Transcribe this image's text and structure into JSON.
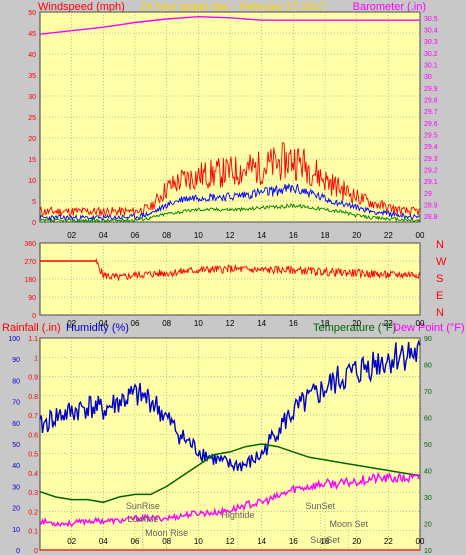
{
  "header": {
    "left_label": "Windspeed (mph)",
    "center_label": "24 hour graph day - February 27 2017",
    "right_label": "Barometer (.in)"
  },
  "colors": {
    "background": "#c8c8c8",
    "plot_background": "#ffffa8",
    "gust": "#ff0000",
    "average_speed": "#0000ff",
    "lull": "#008000",
    "barometer": "#ff00ff",
    "direction": "#ff0000",
    "humidity": "#0000cc",
    "temperature": "#006400",
    "dew_point": "#ff00ff",
    "rainfall": "#ff0000",
    "grid": "#808080"
  },
  "chart_data": [
    {
      "type": "line",
      "panel": "wind",
      "x_ticks": [
        "02",
        "04",
        "06",
        "08",
        "10",
        "12",
        "14",
        "16",
        "18",
        "20",
        "22",
        "00"
      ],
      "y_left": {
        "label": "Windspeed (mph)",
        "ylim": [
          0,
          50
        ],
        "ticks": [
          "0",
          "5",
          "10",
          "15",
          "20",
          "25",
          "30",
          "35",
          "40",
          "45",
          "50"
        ]
      },
      "y_right": {
        "label": "Barometer (.in)",
        "ylim": [
          28.75,
          30.55
        ],
        "ticks": [
          "28.8",
          "28.9",
          "29",
          "29.1",
          "29.2",
          "29.3",
          "29.4",
          "29.5",
          "29.6",
          "29.7",
          "29.8",
          "29.9",
          "30",
          "30.1",
          "30.2",
          "30.3",
          "30.4",
          "30.5"
        ]
      },
      "grid": true,
      "series": [
        {
          "axis": "right",
          "points": [
            [
              0,
              30.36
            ],
            [
              2,
              30.39
            ],
            [
              4,
              30.42
            ],
            [
              6,
              30.46
            ],
            [
              8,
              30.49
            ],
            [
              10,
              30.51
            ],
            [
              12,
              30.5
            ],
            [
              14,
              30.48
            ],
            [
              16,
              30.48
            ],
            [
              18,
              30.48
            ],
            [
              20,
              30.48
            ],
            [
              22,
              30.48
            ],
            [
              24,
              30.48
            ]
          ]
        },
        {
          "axis": "left",
          "points": [
            [
              0,
              2.5
            ],
            [
              4,
              2.5
            ],
            [
              6,
              2.5
            ],
            [
              7,
              3.5
            ],
            [
              8,
              8
            ],
            [
              9,
              10
            ],
            [
              10,
              11
            ],
            [
              11,
              11.5
            ],
            [
              12,
              12
            ],
            [
              13,
              12.5
            ],
            [
              14,
              13
            ],
            [
              15,
              14
            ],
            [
              16,
              15
            ],
            [
              17,
              13
            ],
            [
              18,
              10
            ],
            [
              19,
              8
            ],
            [
              20,
              6
            ],
            [
              21,
              4.5
            ],
            [
              22,
              3.5
            ],
            [
              23,
              2.5
            ],
            [
              24,
              2.5
            ]
          ]
        },
        {
          "axis": "left",
          "points": [
            [
              0,
              1
            ],
            [
              4,
              1
            ],
            [
              6,
              1.2
            ],
            [
              7,
              2
            ],
            [
              8,
              4
            ],
            [
              9,
              5.5
            ],
            [
              10,
              6
            ],
            [
              11,
              6
            ],
            [
              12,
              6
            ],
            [
              13,
              6.5
            ],
            [
              14,
              7
            ],
            [
              15,
              7.5
            ],
            [
              16,
              8
            ],
            [
              17,
              7
            ],
            [
              18,
              5.5
            ],
            [
              19,
              4.5
            ],
            [
              20,
              3.5
            ],
            [
              21,
              2.5
            ],
            [
              22,
              2
            ],
            [
              23,
              1.5
            ],
            [
              24,
              1
            ]
          ]
        },
        {
          "axis": "left",
          "points": [
            [
              0,
              0.3
            ],
            [
              4,
              0.3
            ],
            [
              6,
              0.5
            ],
            [
              7,
              1
            ],
            [
              8,
              2
            ],
            [
              9,
              2.5
            ],
            [
              10,
              3
            ],
            [
              11,
              3
            ],
            [
              12,
              3
            ],
            [
              13,
              3
            ],
            [
              14,
              3.5
            ],
            [
              15,
              3.5
            ],
            [
              16,
              4
            ],
            [
              17,
              3.5
            ],
            [
              18,
              3
            ],
            [
              19,
              2.5
            ],
            [
              20,
              1.5
            ],
            [
              21,
              1
            ],
            [
              22,
              0.8
            ],
            [
              23,
              0.5
            ],
            [
              24,
              0.3
            ]
          ]
        }
      ]
    },
    {
      "type": "line",
      "panel": "direction",
      "x_ticks": [
        "02",
        "04",
        "06",
        "08",
        "10",
        "12",
        "14",
        "16",
        "18",
        "20",
        "22",
        "00"
      ],
      "y_left": {
        "ylim": [
          0,
          360
        ],
        "ticks": [
          "0",
          "90",
          "180",
          "270",
          "360"
        ]
      },
      "y_right_labels": [
        "N",
        "W",
        "S",
        "E",
        "N"
      ],
      "grid": true,
      "series": [
        {
          "points": [
            [
              0,
              270
            ],
            [
              3.5,
              270
            ],
            [
              4,
              200
            ],
            [
              5,
              185
            ],
            [
              6,
              200
            ],
            [
              8,
              210
            ],
            [
              10,
              225
            ],
            [
              12,
              230
            ],
            [
              14,
              225
            ],
            [
              16,
              225
            ],
            [
              18,
              215
            ],
            [
              20,
              210
            ],
            [
              22,
              200
            ],
            [
              24,
              205
            ]
          ]
        }
      ]
    },
    {
      "type": "line",
      "panel": "temperature",
      "x_ticks": [
        "02",
        "04",
        "06",
        "08",
        "10",
        "12",
        "14",
        "16",
        "18",
        "20",
        "22",
        "00"
      ],
      "legend": {
        "rainfall": "Rainfall (.in)",
        "humidity": "Humidity (%)",
        "temperature": "Temperature (°F)",
        "dew_point": "Dew Point (°F)"
      },
      "y_humidity": {
        "ylim": [
          0,
          100
        ],
        "ticks": [
          "0",
          "10",
          "20",
          "30",
          "40",
          "50",
          "60",
          "70",
          "80",
          "90",
          "100"
        ]
      },
      "y_rain": {
        "ylim": [
          0,
          1.1
        ],
        "ticks": [
          "0",
          "0.1",
          "0.2",
          "0.3",
          "0.4",
          "0.5",
          "0.6",
          "0.7",
          "0.8",
          "0.9",
          "1",
          "1.1"
        ]
      },
      "y_temp": {
        "ylim": [
          10,
          90
        ],
        "ticks": [
          "10",
          "20",
          "30",
          "40",
          "50",
          "60",
          "70",
          "80",
          "90"
        ]
      },
      "grid": true,
      "annotations": [
        {
          "text": "SunRise",
          "x": 6.5
        },
        {
          "text": "Lowtide",
          "x": 6.5
        },
        {
          "text": "Moon Rise",
          "x": 8
        },
        {
          "text": "Hightide",
          "x": 12.5
        },
        {
          "text": "SunSet",
          "x": 17.7
        },
        {
          "text": "Moon Set",
          "x": 19.5
        },
        {
          "text": "SunSet",
          "x": 18
        }
      ],
      "series": [
        {
          "axis": "humidity",
          "points": [
            [
              0,
              58
            ],
            [
              1,
              63
            ],
            [
              2,
              65
            ],
            [
              3,
              68
            ],
            [
              4,
              66
            ],
            [
              5,
              70
            ],
            [
              6,
              73
            ],
            [
              7,
              71
            ],
            [
              8,
              62
            ],
            [
              9,
              53
            ],
            [
              10,
              47
            ],
            [
              11,
              43
            ],
            [
              12,
              40
            ],
            [
              13,
              40
            ],
            [
              14,
              45
            ],
            [
              15,
              57
            ],
            [
              16,
              65
            ],
            [
              17,
              71
            ],
            [
              18,
              76
            ],
            [
              19,
              81
            ],
            [
              20,
              84
            ],
            [
              21,
              88
            ],
            [
              22,
              90
            ],
            [
              23,
              93
            ],
            [
              24,
              92
            ]
          ]
        },
        {
          "axis": "temp",
          "points": [
            [
              0,
              32
            ],
            [
              1,
              30
            ],
            [
              2,
              29
            ],
            [
              3,
              29
            ],
            [
              4,
              28
            ],
            [
              5,
              30
            ],
            [
              6,
              31
            ],
            [
              7,
              31
            ],
            [
              8,
              34
            ],
            [
              9,
              38
            ],
            [
              10,
              42
            ],
            [
              11,
              46
            ],
            [
              12,
              47
            ],
            [
              13,
              49
            ],
            [
              14,
              50
            ],
            [
              15,
              49
            ],
            [
              16,
              47
            ],
            [
              17,
              45
            ],
            [
              18,
              44
            ],
            [
              19,
              43
            ],
            [
              20,
              42
            ],
            [
              21,
              41
            ],
            [
              22,
              40
            ],
            [
              23,
              39
            ],
            [
              24,
              38
            ]
          ]
        },
        {
          "axis": "temp",
          "points": [
            [
              0,
              21
            ],
            [
              1,
              20
            ],
            [
              2,
              20
            ],
            [
              3,
              21
            ],
            [
              4,
              21
            ],
            [
              5,
              21
            ],
            [
              6,
              22
            ],
            [
              7,
              22
            ],
            [
              8,
              22
            ],
            [
              9,
              23
            ],
            [
              10,
              24
            ],
            [
              11,
              24
            ],
            [
              12,
              25
            ],
            [
              13,
              27
            ],
            [
              14,
              28
            ],
            [
              15,
              30
            ],
            [
              16,
              33
            ],
            [
              17,
              34
            ],
            [
              18,
              35
            ],
            [
              19,
              35
            ],
            [
              20,
              36
            ],
            [
              21,
              37
            ],
            [
              22,
              37
            ],
            [
              23,
              37
            ],
            [
              24,
              37
            ]
          ]
        },
        {
          "axis": "rain",
          "points": [
            [
              0,
              0
            ],
            [
              24,
              0
            ]
          ]
        }
      ]
    }
  ]
}
